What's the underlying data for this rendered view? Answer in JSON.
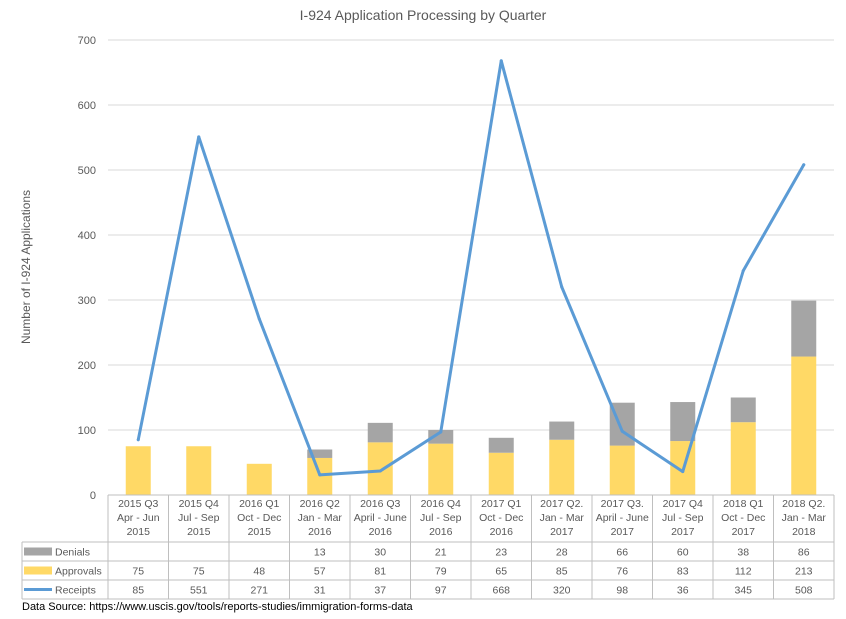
{
  "chart_data": {
    "type": "bar",
    "title": "I-924 Application Processing by Quarter",
    "ylabel": "Number of I-924 Applications",
    "xlabel": "",
    "ylim": [
      0,
      700
    ],
    "yticks": [
      0,
      100,
      200,
      300,
      400,
      500,
      600,
      700
    ],
    "grid": true,
    "legend_placement": "data-table-left",
    "categories": [
      [
        "2015 Q3",
        "Apr - Jun",
        "2015"
      ],
      [
        "2015 Q4",
        "Jul - Sep",
        "2015"
      ],
      [
        "2016 Q1",
        "Oct - Dec",
        "2015"
      ],
      [
        "2016 Q2",
        "Jan - Mar",
        "2016"
      ],
      [
        "2016 Q3",
        "April - June",
        "2016"
      ],
      [
        "2016 Q4",
        "Jul - Sep",
        "2016"
      ],
      [
        "2017 Q1",
        "Oct - Dec",
        "2016"
      ],
      [
        "2017 Q2.",
        "Jan - Mar",
        "2017"
      ],
      [
        "2017 Q3.",
        "April - June",
        "2017"
      ],
      [
        "2017 Q4",
        "Jul - Sep",
        "2017"
      ],
      [
        "2018 Q1",
        "Oct - Dec",
        "2017"
      ],
      [
        "2018 Q2.",
        "Jan - Mar",
        "2018"
      ]
    ],
    "series": [
      {
        "name": "Denials",
        "kind": "stacked-bar",
        "color": "#a5a5a5",
        "values": [
          null,
          null,
          null,
          13,
          30,
          21,
          23,
          28,
          66,
          60,
          38,
          86
        ]
      },
      {
        "name": "Approvals",
        "kind": "stacked-bar",
        "color": "#ffd966",
        "values": [
          75,
          75,
          48,
          57,
          81,
          79,
          65,
          85,
          76,
          83,
          112,
          213
        ]
      },
      {
        "name": "Receipts",
        "kind": "line",
        "color": "#5b9bd5",
        "values": [
          85,
          551,
          271,
          31,
          37,
          97,
          668,
          320,
          98,
          36,
          345,
          508
        ]
      }
    ]
  },
  "source_note": "Data Source: https://www.uscis.gov/tools/reports-studies/immigration-forms-data"
}
